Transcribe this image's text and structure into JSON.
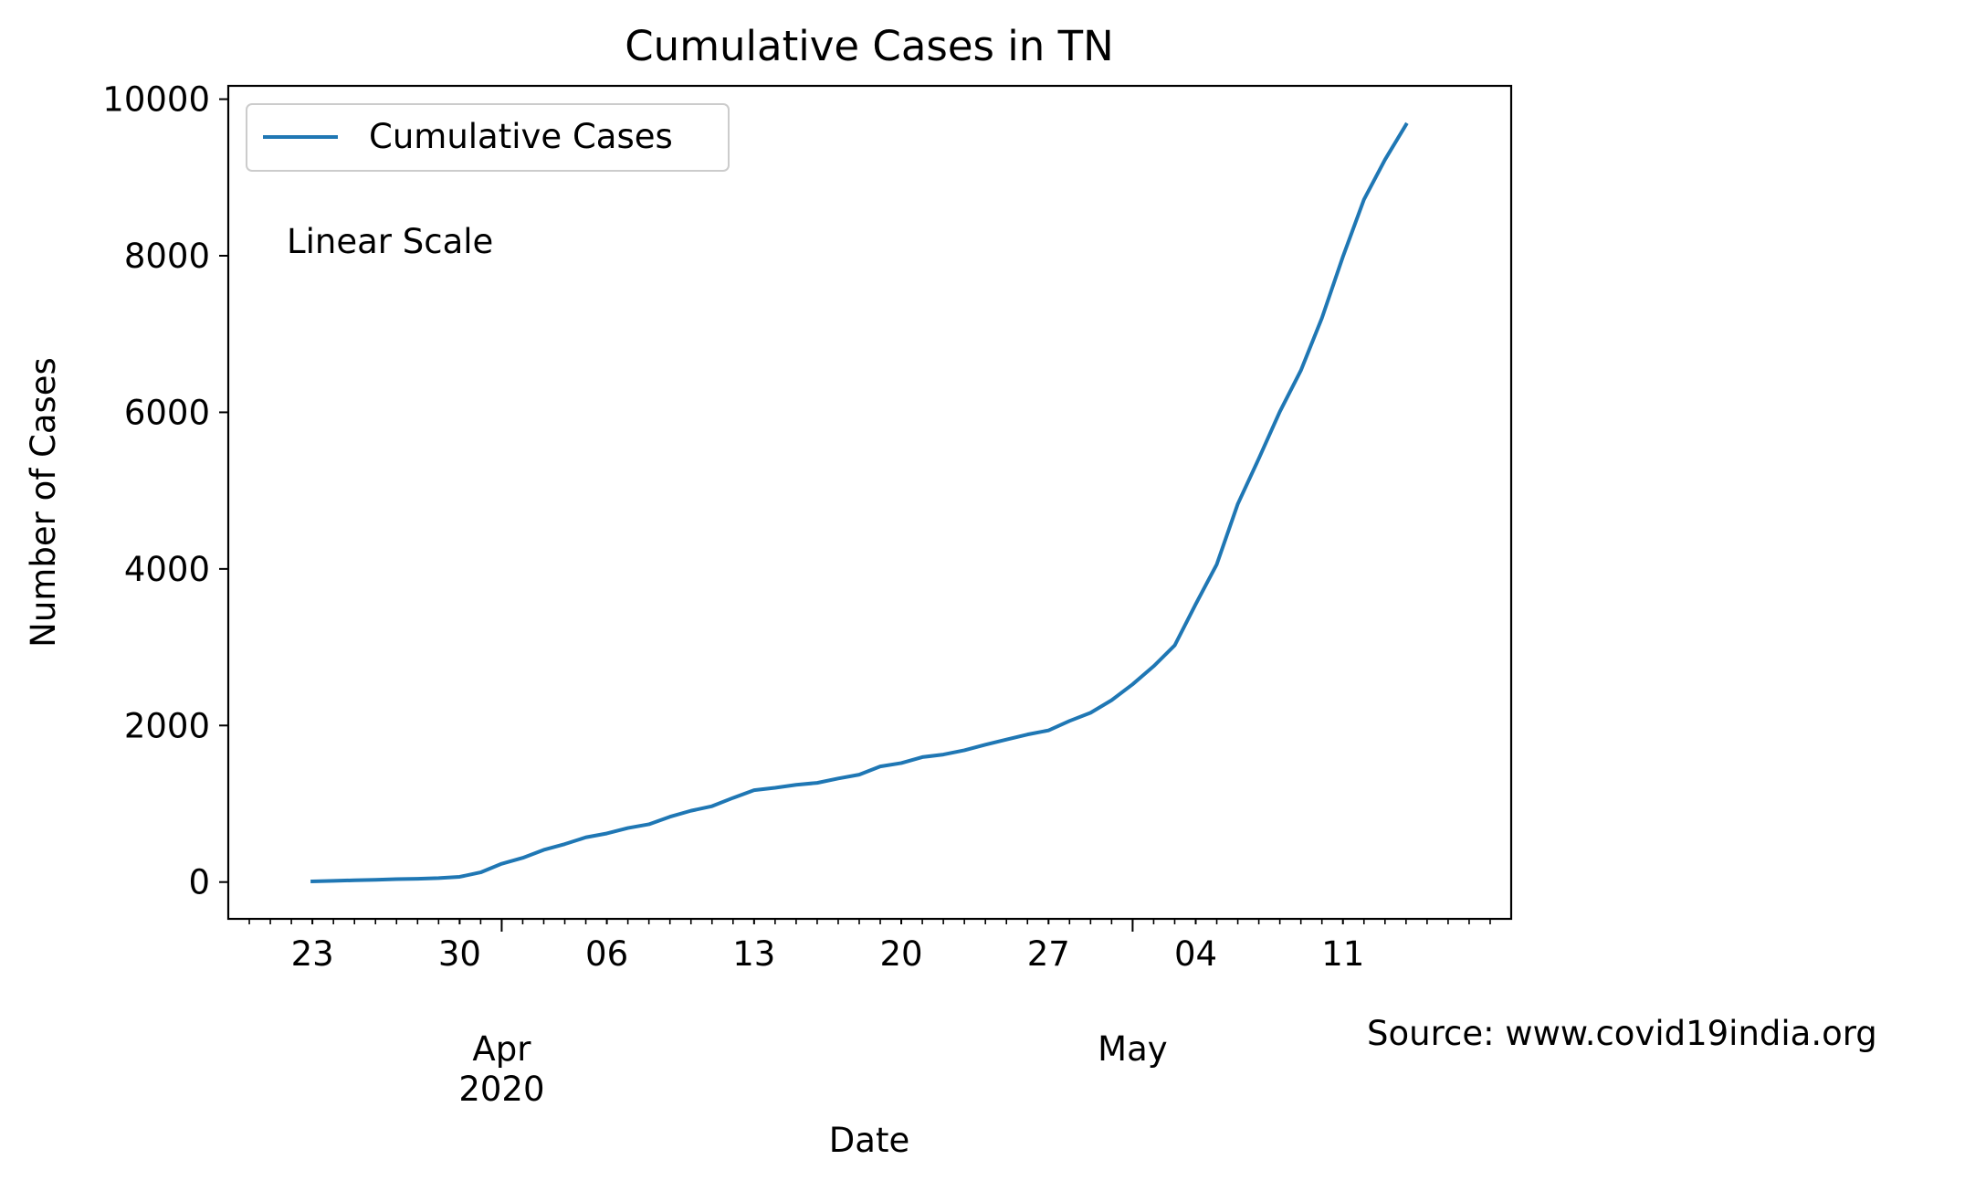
{
  "chart_data": {
    "type": "line",
    "title": "Cumulative Cases in TN",
    "xlabel": "Date",
    "ylabel": "Number of Cases",
    "ylim": [
      -470,
      10170
    ],
    "xlim": [
      "2020-03-19",
      "2020-05-19"
    ],
    "yticks": [
      0,
      2000,
      4000,
      6000,
      8000,
      10000
    ],
    "xticks_major": [
      {
        "date": "2020-04-01",
        "label": "Apr\n2020"
      },
      {
        "date": "2020-05-01",
        "label": "May"
      }
    ],
    "xticks_minor": [
      {
        "date": "2020-03-23",
        "label": "23"
      },
      {
        "date": "2020-03-30",
        "label": "30"
      },
      {
        "date": "2020-04-06",
        "label": "06"
      },
      {
        "date": "2020-04-13",
        "label": "13"
      },
      {
        "date": "2020-04-20",
        "label": "20"
      },
      {
        "date": "2020-04-27",
        "label": "27"
      },
      {
        "date": "2020-05-04",
        "label": "04"
      },
      {
        "date": "2020-05-11",
        "label": "11"
      }
    ],
    "grid": false,
    "legend_position": "upper-left",
    "annotations": [
      {
        "text": "Linear Scale",
        "location": "upper-left inside axes"
      },
      {
        "text": "Source: www.covid19india.org",
        "location": "bottom-right outside axes"
      }
    ],
    "series": [
      {
        "name": "Cumulative Cases",
        "color": "#1f77b4",
        "x": [
          "2020-03-23",
          "2020-03-24",
          "2020-03-25",
          "2020-03-26",
          "2020-03-27",
          "2020-03-28",
          "2020-03-29",
          "2020-03-30",
          "2020-03-31",
          "2020-04-01",
          "2020-04-02",
          "2020-04-03",
          "2020-04-04",
          "2020-04-05",
          "2020-04-06",
          "2020-04-07",
          "2020-04-08",
          "2020-04-09",
          "2020-04-10",
          "2020-04-11",
          "2020-04-12",
          "2020-04-13",
          "2020-04-14",
          "2020-04-15",
          "2020-04-16",
          "2020-04-17",
          "2020-04-18",
          "2020-04-19",
          "2020-04-20",
          "2020-04-21",
          "2020-04-22",
          "2020-04-23",
          "2020-04-24",
          "2020-04-25",
          "2020-04-26",
          "2020-04-27",
          "2020-04-28",
          "2020-04-29",
          "2020-04-30",
          "2020-05-01",
          "2020-05-02",
          "2020-05-03",
          "2020-05-04",
          "2020-05-05",
          "2020-05-06",
          "2020-05-07",
          "2020-05-08",
          "2020-05-09",
          "2020-05-10",
          "2020-05-11",
          "2020-05-12",
          "2020-05-13",
          "2020-05-14"
        ],
        "y": [
          9,
          15,
          23,
          29,
          38,
          42,
          50,
          67,
          124,
          234,
          309,
          411,
          485,
          571,
          621,
          690,
          738,
          834,
          911,
          969,
          1075,
          1173,
          1204,
          1242,
          1267,
          1323,
          1372,
          1477,
          1520,
          1596,
          1629,
          1683,
          1755,
          1821,
          1885,
          1937,
          2058,
          2162,
          2323,
          2526,
          2757,
          3023,
          3550,
          4058,
          4829,
          5409,
          6009,
          6535,
          7204,
          7989,
          8718,
          9227,
          9674
        ]
      }
    ]
  }
}
